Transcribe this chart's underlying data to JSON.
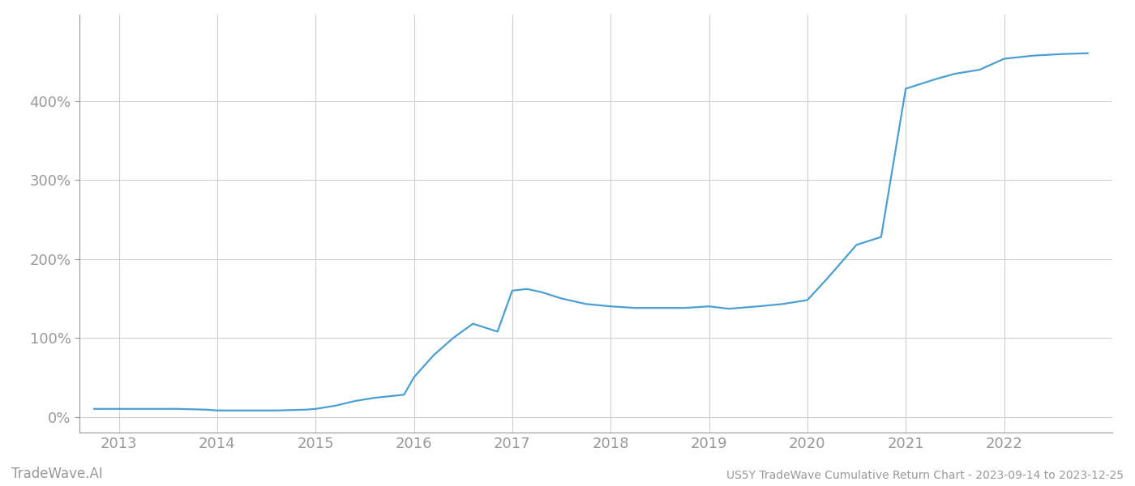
{
  "title": "US5Y TradeWave Cumulative Return Chart - 2023-09-14 to 2023-12-25",
  "watermark": "TradeWave.AI",
  "line_color": "#4a9fd4",
  "background_color": "#ffffff",
  "grid_color": "#d0d0d0",
  "x_values": [
    2012.75,
    2013.0,
    2013.3,
    2013.6,
    2013.9,
    2014.0,
    2014.3,
    2014.6,
    2014.9,
    2015.0,
    2015.2,
    2015.4,
    2015.6,
    2015.9,
    2016.0,
    2016.2,
    2016.4,
    2016.6,
    2016.85,
    2017.0,
    2017.15,
    2017.3,
    2017.5,
    2017.75,
    2018.0,
    2018.25,
    2018.5,
    2018.75,
    2019.0,
    2019.2,
    2019.5,
    2019.75,
    2020.0,
    2020.2,
    2020.5,
    2020.75,
    2021.0,
    2021.15,
    2021.3,
    2021.5,
    2021.75,
    2022.0,
    2022.3,
    2022.6,
    2022.85
  ],
  "y_values": [
    10,
    10,
    10,
    10,
    9,
    8,
    8,
    8,
    9,
    10,
    14,
    20,
    24,
    28,
    50,
    78,
    100,
    118,
    108,
    160,
    162,
    158,
    150,
    143,
    140,
    138,
    138,
    138,
    140,
    137,
    140,
    143,
    148,
    175,
    218,
    228,
    416,
    422,
    428,
    435,
    440,
    454,
    458,
    460,
    461
  ],
  "xlim": [
    2012.6,
    2023.1
  ],
  "ylim": [
    -20,
    510
  ],
  "yticks": [
    0,
    100,
    200,
    300,
    400
  ],
  "xticks": [
    2013,
    2014,
    2015,
    2016,
    2017,
    2018,
    2019,
    2020,
    2021,
    2022
  ],
  "title_fontsize": 10,
  "tick_fontsize": 13,
  "watermark_fontsize": 12,
  "line_width": 1.6,
  "spine_color": "#999999",
  "tick_color": "#999999"
}
